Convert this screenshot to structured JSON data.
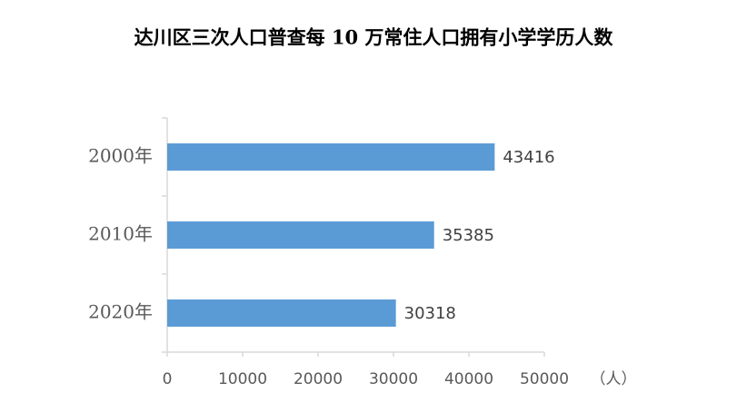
{
  "chart_data": {
    "type": "hbar",
    "title": "达川区三次人口普查每 10 万常住人口拥有小学学历人数",
    "categories": [
      "2000年",
      "2010年",
      "2020年"
    ],
    "values": [
      43416,
      35385,
      30318
    ],
    "color": "#5b9bd5",
    "x_label": "（人）",
    "xlim": [
      0,
      50000
    ],
    "xticks": [
      0,
      10000,
      20000,
      30000,
      40000,
      50000
    ]
  }
}
